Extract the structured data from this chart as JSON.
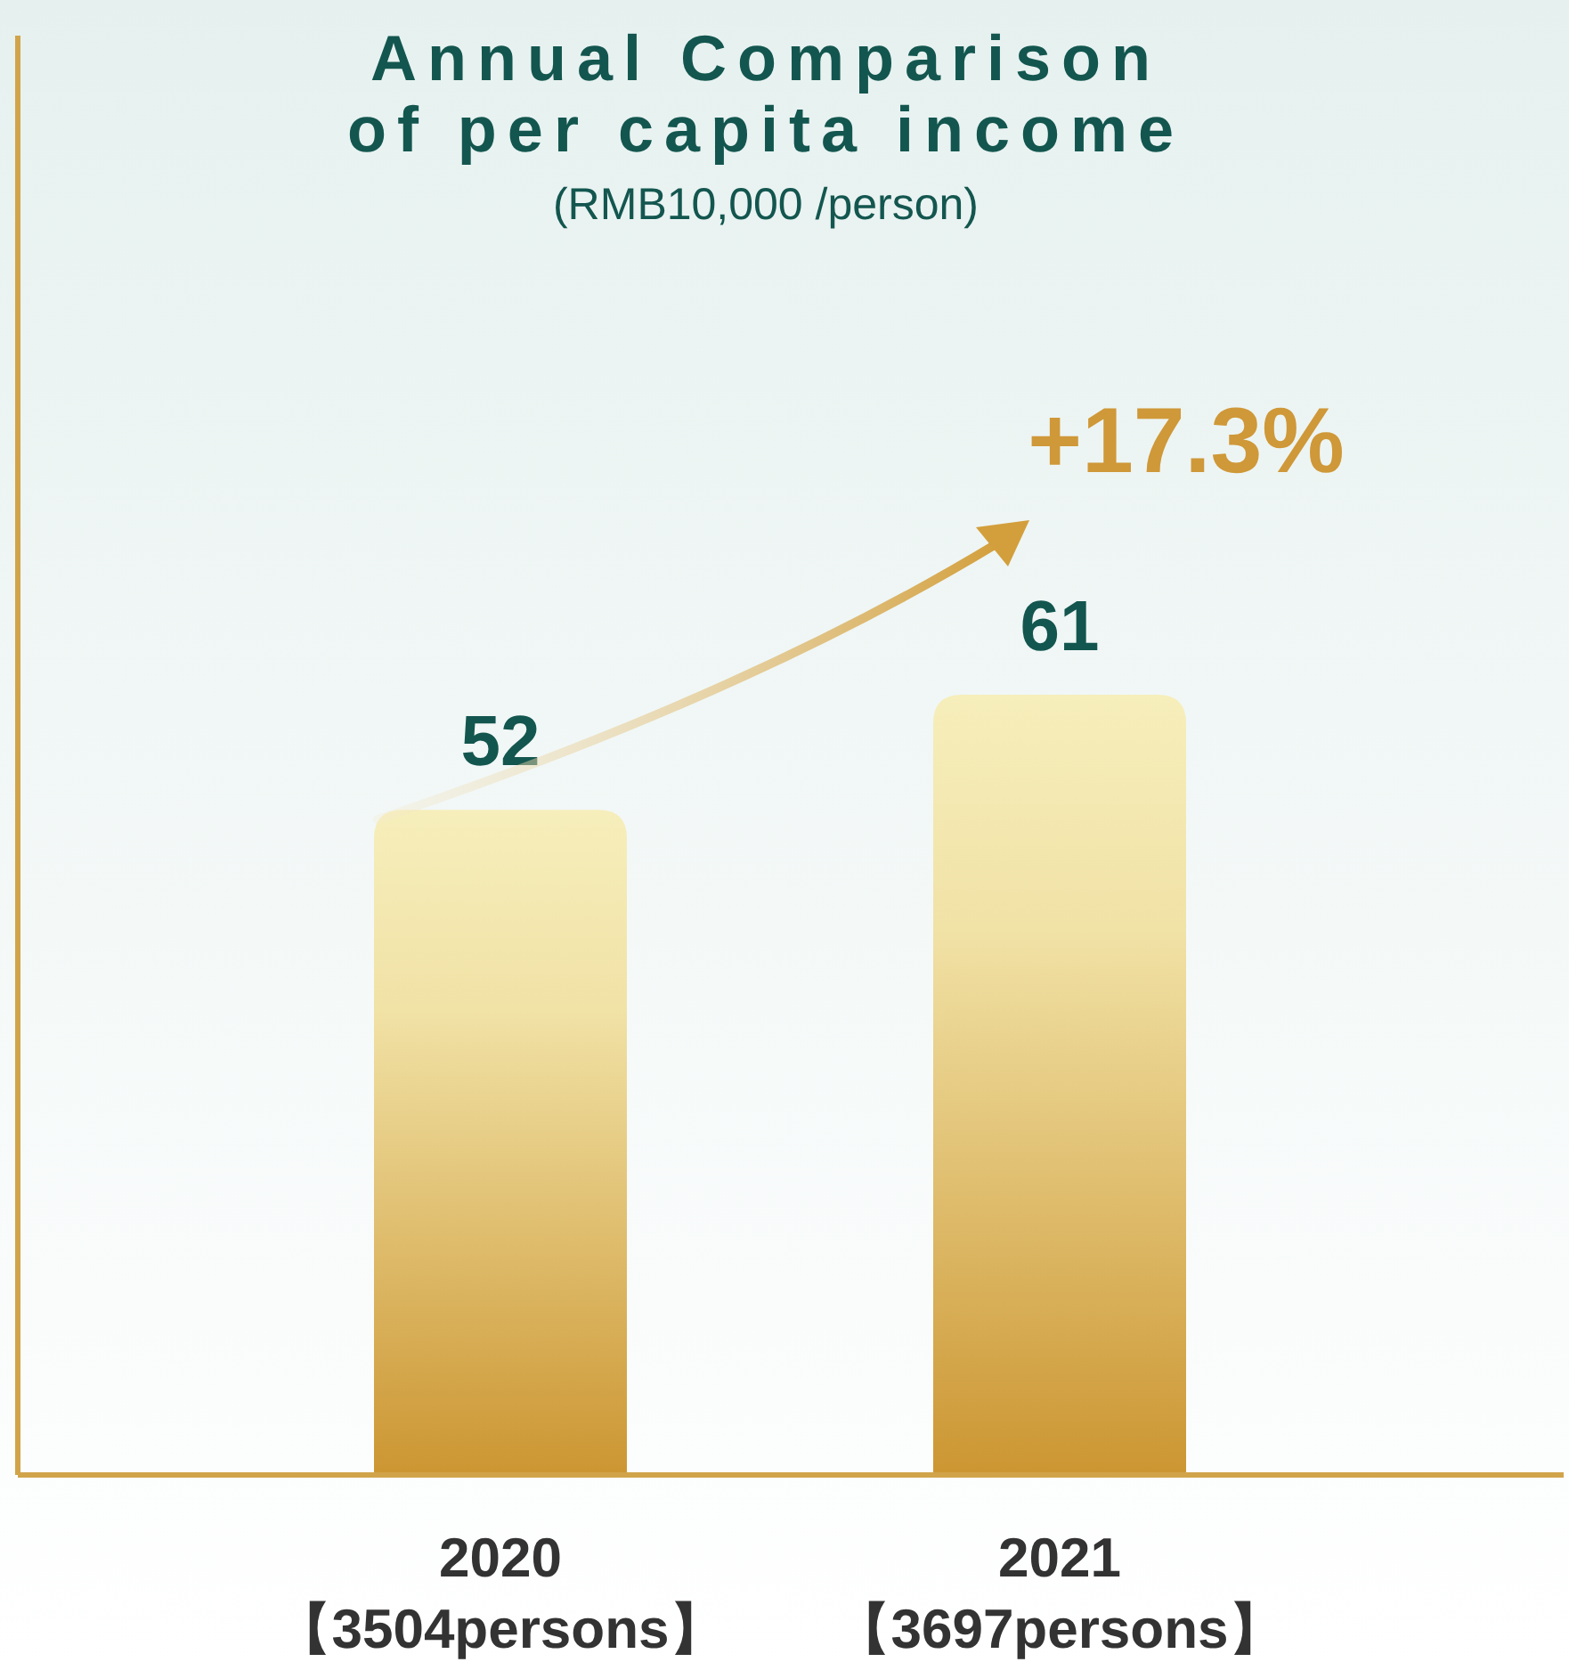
{
  "chart_data": {
    "type": "bar",
    "title": "Annual Comparison\nof per capita income",
    "subtitle": "(RMB10,000 /person)",
    "categories": [
      "2020\n【3504persons】",
      "2021\n【3697persons】"
    ],
    "values": [
      52,
      61
    ],
    "color": "#cc9632",
    "data_labels": true,
    "annotations": [
      "+17.3%"
    ]
  }
}
